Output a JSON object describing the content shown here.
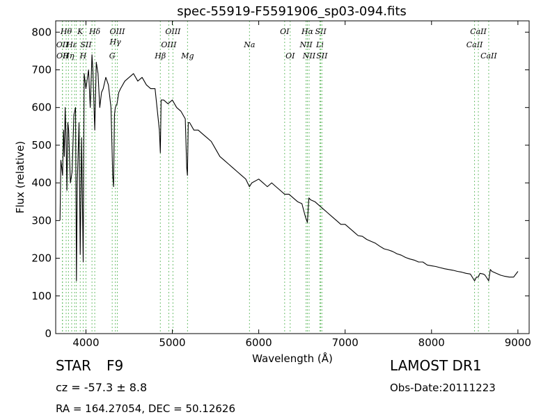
{
  "chart_data": {
    "type": "line",
    "title": "spec-55919-F5591906_sp03-094.fits",
    "xlabel": "Wavelength (Å)",
    "ylabel": "Flux (relative)",
    "xlim": [
      3650,
      9130
    ],
    "ylim": [
      0,
      830
    ],
    "xticks": [
      4000,
      5000,
      6000,
      7000,
      8000,
      9000
    ],
    "yticks": [
      0,
      100,
      200,
      300,
      400,
      500,
      600,
      700,
      800
    ],
    "grid": false,
    "series": [
      {
        "x": [
          3700,
          3710,
          3720,
          3730,
          3740,
          3750,
          3760,
          3770,
          3780,
          3790,
          3800,
          3820,
          3840,
          3860,
          3880,
          3890,
          3900,
          3920,
          3934,
          3950,
          3968,
          3980,
          4000,
          4030,
          4050,
          4070,
          4080,
          4102,
          4120,
          4140,
          4160,
          4180,
          4200,
          4230,
          4260,
          4290,
          4310,
          4320,
          4330,
          4340,
          4360,
          4380,
          4400,
          4450,
          4500,
          4550,
          4600,
          4650,
          4700,
          4750,
          4800,
          4850,
          4861,
          4870,
          4900,
          4950,
          5000,
          5050,
          5100,
          5150,
          5167,
          5175,
          5184,
          5200,
          5250,
          5300,
          5350,
          5400,
          5450,
          5500,
          5550,
          5600,
          5650,
          5700,
          5750,
          5800,
          5850,
          5893,
          5920,
          6000,
          6050,
          6100,
          6150,
          6200,
          6250,
          6300,
          6350,
          6400,
          6450,
          6500,
          6540,
          6563,
          6580,
          6600,
          6650,
          6700,
          6750,
          6800,
          6850,
          6900,
          6950,
          7000,
          7050,
          7100,
          7150,
          7200,
          7250,
          7300,
          7350,
          7400,
          7450,
          7500,
          7550,
          7600,
          7650,
          7700,
          7750,
          7800,
          7850,
          7900,
          7950,
          8000,
          8050,
          8100,
          8150,
          8200,
          8250,
          8300,
          8350,
          8400,
          8450,
          8498,
          8520,
          8542,
          8560,
          8600,
          8620,
          8662,
          8680,
          8700,
          8750,
          8800,
          8850,
          8900,
          8950,
          9000
        ],
        "values": [
          300,
          460,
          440,
          420,
          540,
          470,
          600,
          520,
          380,
          560,
          540,
          400,
          430,
          580,
          600,
          140,
          400,
          560,
          210,
          520,
          190,
          690,
          650,
          700,
          600,
          740,
          700,
          540,
          720,
          690,
          600,
          640,
          650,
          680,
          660,
          600,
          420,
          390,
          580,
          600,
          610,
          640,
          650,
          670,
          680,
          690,
          670,
          680,
          660,
          650,
          650,
          540,
          480,
          620,
          620,
          610,
          620,
          600,
          590,
          570,
          440,
          420,
          560,
          560,
          540,
          540,
          530,
          520,
          510,
          490,
          470,
          460,
          450,
          440,
          430,
          420,
          410,
          390,
          400,
          410,
          400,
          390,
          400,
          390,
          380,
          370,
          370,
          360,
          350,
          345,
          310,
          295,
          360,
          355,
          350,
          340,
          330,
          320,
          310,
          300,
          290,
          290,
          280,
          270,
          260,
          258,
          250,
          245,
          240,
          232,
          225,
          222,
          218,
          212,
          208,
          202,
          198,
          195,
          190,
          190,
          182,
          180,
          178,
          175,
          172,
          170,
          168,
          165,
          163,
          160,
          158,
          140,
          150,
          150,
          160,
          158,
          155,
          140,
          170,
          165,
          160,
          155,
          152,
          150,
          150,
          165
        ]
      }
    ],
    "line_markers": [
      {
        "wavelength": 3727,
        "label": "OII",
        "row": 2
      },
      {
        "wavelength": 3729,
        "label": "OII",
        "row": 3
      },
      {
        "wavelength": 3771,
        "label": "Hθ",
        "row": 0
      },
      {
        "wavelength": 3798,
        "label": "Hη",
        "row": 3
      },
      {
        "wavelength": 3835,
        "label": "Hε",
        "row": 2
      },
      {
        "wavelength": 3869,
        "label": "",
        "row": null
      },
      {
        "wavelength": 3889,
        "label": "",
        "row": null
      },
      {
        "wavelength": 3934,
        "label": "K",
        "row": 0
      },
      {
        "wavelength": 3968,
        "label": "H",
        "row": 3
      },
      {
        "wavelength": 4000,
        "label": "SII",
        "row": 2
      },
      {
        "wavelength": 4070,
        "label": "",
        "row": null
      },
      {
        "wavelength": 4102,
        "label": "Hδ",
        "row": 0
      },
      {
        "wavelength": 4304,
        "label": "G",
        "row": 3
      },
      {
        "wavelength": 4340,
        "label": "Hγ",
        "row": 1
      },
      {
        "wavelength": 4363,
        "label": "OIII",
        "row": 0
      },
      {
        "wavelength": 4861,
        "label": "Hβ",
        "row": 3
      },
      {
        "wavelength": 4959,
        "label": "OIII",
        "row": 2
      },
      {
        "wavelength": 5007,
        "label": "OIII",
        "row": 0
      },
      {
        "wavelength": 5176,
        "label": "Mg",
        "row": 3
      },
      {
        "wavelength": 5893,
        "label": "Na",
        "row": 2
      },
      {
        "wavelength": 6300,
        "label": "OI",
        "row": 0
      },
      {
        "wavelength": 6364,
        "label": "OI",
        "row": 3
      },
      {
        "wavelength": 6548,
        "label": "NII",
        "row": 2
      },
      {
        "wavelength": 6563,
        "label": "Hα",
        "row": 0
      },
      {
        "wavelength": 6583,
        "label": "NII",
        "row": 3
      },
      {
        "wavelength": 6708,
        "label": "Li",
        "row": 2
      },
      {
        "wavelength": 6717,
        "label": "SII",
        "row": 0
      },
      {
        "wavelength": 6731,
        "label": "SII",
        "row": 3
      },
      {
        "wavelength": 8498,
        "label": "CaII",
        "row": 2
      },
      {
        "wavelength": 8542,
        "label": "CaII",
        "row": 0
      },
      {
        "wavelength": 8662,
        "label": "CaII",
        "row": 3
      }
    ]
  },
  "info": {
    "object_class": "STAR",
    "subclass": "F9",
    "cz": "cz = -57.3 ± 8.8",
    "radec": "RA = 164.27054, DEC = 50.12626",
    "survey": "LAMOST DR1",
    "obs_date": "Obs-Date:20111223"
  },
  "colors": {
    "spectrum": "#000000",
    "line_marker": "#6fbf6f",
    "axis": "#000000",
    "background": "#ffffff"
  }
}
